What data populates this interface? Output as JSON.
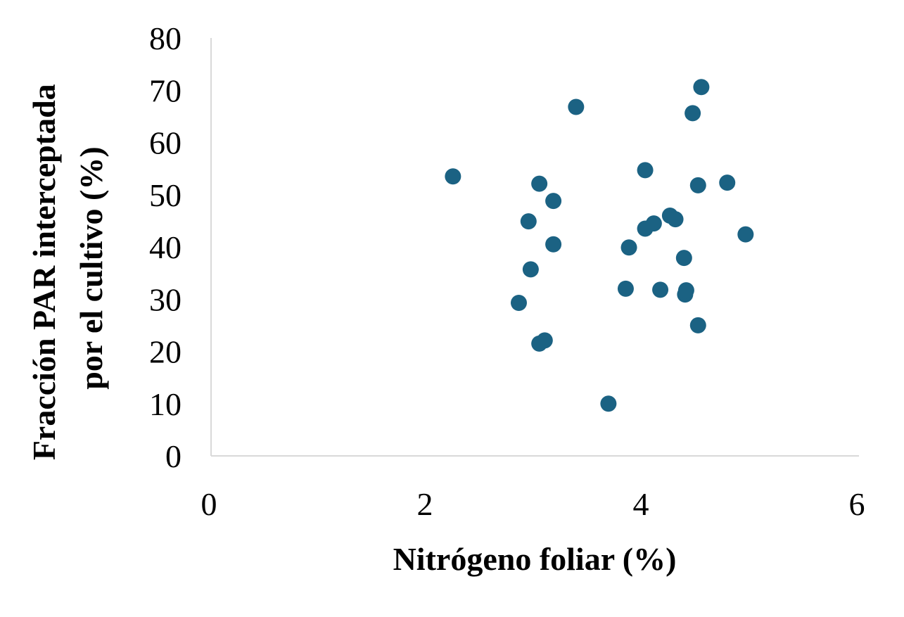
{
  "chart_data": {
    "type": "scatter",
    "title": "",
    "xlabel": "Nitrógeno foliar (%)",
    "ylabel_lines": [
      "Fracción PAR interceptada",
      "por el cultivo (%)"
    ],
    "xlim": [
      0,
      6
    ],
    "ylim": [
      0,
      80
    ],
    "x_ticks": [
      0,
      2,
      4,
      6
    ],
    "y_ticks": [
      0,
      10,
      20,
      30,
      40,
      50,
      60,
      70,
      80
    ],
    "grid": false,
    "legend": "none",
    "marker_color": "#1b6283",
    "axis_color": "#d9d9d9",
    "points": [
      {
        "x": 2.24,
        "y": 53.5
      },
      {
        "x": 2.85,
        "y": 29.3
      },
      {
        "x": 2.94,
        "y": 44.9
      },
      {
        "x": 2.96,
        "y": 35.7
      },
      {
        "x": 3.04,
        "y": 52.1
      },
      {
        "x": 3.04,
        "y": 21.5
      },
      {
        "x": 3.09,
        "y": 22.1
      },
      {
        "x": 3.17,
        "y": 48.8
      },
      {
        "x": 3.17,
        "y": 40.5
      },
      {
        "x": 3.38,
        "y": 66.8
      },
      {
        "x": 3.68,
        "y": 10.0
      },
      {
        "x": 3.84,
        "y": 32.0
      },
      {
        "x": 3.87,
        "y": 39.9
      },
      {
        "x": 4.02,
        "y": 54.7
      },
      {
        "x": 4.02,
        "y": 43.5
      },
      {
        "x": 4.1,
        "y": 44.5
      },
      {
        "x": 4.16,
        "y": 31.8
      },
      {
        "x": 4.25,
        "y": 46.0
      },
      {
        "x": 4.3,
        "y": 45.3
      },
      {
        "x": 4.38,
        "y": 37.9
      },
      {
        "x": 4.39,
        "y": 30.9
      },
      {
        "x": 4.4,
        "y": 31.7
      },
      {
        "x": 4.46,
        "y": 65.6
      },
      {
        "x": 4.51,
        "y": 51.8
      },
      {
        "x": 4.51,
        "y": 25.0
      },
      {
        "x": 4.54,
        "y": 70.6
      },
      {
        "x": 4.78,
        "y": 52.3
      },
      {
        "x": 4.95,
        "y": 42.4
      }
    ]
  }
}
